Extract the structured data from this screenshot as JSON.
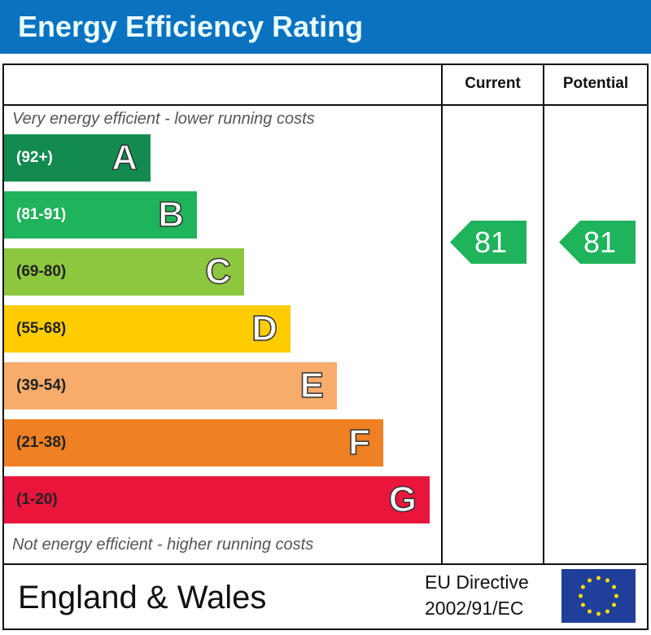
{
  "title": "Energy Efficiency Rating",
  "columns": {
    "current": "Current",
    "potential": "Potential"
  },
  "top_note": "Very energy efficient - lower running costs",
  "bottom_note": "Not energy efficient - higher running costs",
  "footer": {
    "region": "England & Wales",
    "directive_line1": "EU Directive",
    "directive_line2": "2002/91/EC",
    "flag_icon": "eu-flag-icon"
  },
  "chart_data": {
    "type": "bar",
    "categories": [
      "A",
      "B",
      "C",
      "D",
      "E",
      "F",
      "G"
    ],
    "bands": [
      {
        "letter": "A",
        "range": "(92+)",
        "color": "#138a4f",
        "text_color": "#ffffff"
      },
      {
        "letter": "B",
        "range": "(81-91)",
        "color": "#1fb35b",
        "text_color": "#ffffff"
      },
      {
        "letter": "C",
        "range": "(69-80)",
        "color": "#8dc63f",
        "text_color": "#222222"
      },
      {
        "letter": "D",
        "range": "(55-68)",
        "color": "#ffcc00",
        "text_color": "#222222"
      },
      {
        "letter": "E",
        "range": "(39-54)",
        "color": "#f7ac6b",
        "text_color": "#222222"
      },
      {
        "letter": "F",
        "range": "(21-38)",
        "color": "#ef8023",
        "text_color": "#222222"
      },
      {
        "letter": "G",
        "range": "(1-20)",
        "color": "#e9153b",
        "text_color": "#222222"
      }
    ],
    "current": {
      "value": "81",
      "band": "B",
      "color": "#1fb35b"
    },
    "potential": {
      "value": "81",
      "band": "B",
      "color": "#1fb35b"
    }
  }
}
